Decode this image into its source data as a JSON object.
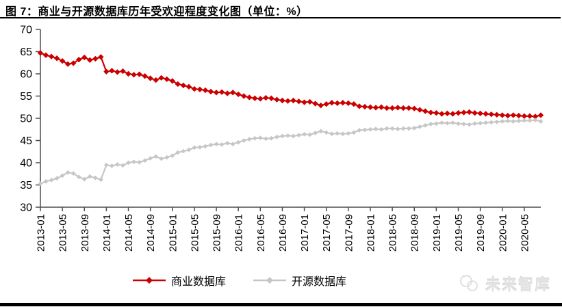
{
  "figure": {
    "title": "图 7：商业与开源数据库历年受欢迎程度变化图（单位：%）"
  },
  "watermark": {
    "text": "未来智库"
  },
  "colors": {
    "commercial": "#CC0000",
    "opensource": "#C6C6C6",
    "axis": "#4d4d4d",
    "text": "#000000"
  },
  "chart_data": {
    "type": "line",
    "title": "商业与开源数据库历年受欢迎程度变化图（单位：%）",
    "xlabel": "",
    "ylabel": "",
    "ylim": [
      30,
      70
    ],
    "y_ticks": [
      30,
      35,
      40,
      45,
      50,
      55,
      60,
      65,
      70
    ],
    "grid": false,
    "legend_position": "bottom",
    "x_tick_every": 4,
    "x": [
      "2013-01",
      "2013-02",
      "2013-03",
      "2013-04",
      "2013-05",
      "2013-06",
      "2013-07",
      "2013-08",
      "2013-09",
      "2013-10",
      "2013-11",
      "2013-12",
      "2014-01",
      "2014-02",
      "2014-03",
      "2014-04",
      "2014-05",
      "2014-06",
      "2014-07",
      "2014-08",
      "2014-09",
      "2014-10",
      "2014-11",
      "2014-12",
      "2015-01",
      "2015-02",
      "2015-03",
      "2015-04",
      "2015-05",
      "2015-06",
      "2015-07",
      "2015-08",
      "2015-09",
      "2015-10",
      "2015-11",
      "2015-12",
      "2016-01",
      "2016-02",
      "2016-03",
      "2016-04",
      "2016-05",
      "2016-06",
      "2016-07",
      "2016-08",
      "2016-09",
      "2016-10",
      "2016-11",
      "2016-12",
      "2017-01",
      "2017-02",
      "2017-03",
      "2017-04",
      "2017-05",
      "2017-06",
      "2017-07",
      "2017-08",
      "2017-09",
      "2017-10",
      "2017-11",
      "2017-12",
      "2018-01",
      "2018-02",
      "2018-03",
      "2018-04",
      "2018-05",
      "2018-06",
      "2018-07",
      "2018-08",
      "2018-09",
      "2018-10",
      "2018-11",
      "2018-12",
      "2019-01",
      "2019-02",
      "2019-03",
      "2019-04",
      "2019-05",
      "2019-06",
      "2019-07",
      "2019-08",
      "2019-09",
      "2019-10",
      "2019-11",
      "2019-12",
      "2020-01",
      "2020-02",
      "2020-03",
      "2020-04",
      "2020-05",
      "2020-06",
      "2020-07",
      "2020-08"
    ],
    "x_tick_labels": [
      "2013-01",
      "2013-05",
      "2013-09",
      "2014-01",
      "2014-05",
      "2014-09",
      "2015-01",
      "2015-05",
      "2015-09",
      "2016-01",
      "2016-05",
      "2016-09",
      "2017-01",
      "2017-05",
      "2017-09",
      "2018-01",
      "2018-05",
      "2018-09",
      "2019-01",
      "2019-05",
      "2019-09",
      "2020-01",
      "2020-05"
    ],
    "series": [
      {
        "name": "商业数据库",
        "color": "#CC0000",
        "marker": "diamond",
        "values": [
          64.7,
          64.2,
          63.9,
          63.5,
          62.9,
          62.2,
          62.4,
          63.2,
          63.7,
          63.1,
          63.4,
          63.8,
          60.5,
          60.7,
          60.4,
          60.6,
          60.0,
          59.8,
          59.9,
          59.5,
          59.0,
          58.6,
          59.1,
          58.8,
          58.4,
          57.7,
          57.4,
          57.1,
          56.6,
          56.5,
          56.3,
          56.0,
          55.8,
          55.9,
          55.6,
          55.8,
          55.4,
          55.0,
          54.7,
          54.5,
          54.4,
          54.6,
          54.5,
          54.2,
          54.0,
          53.9,
          54.0,
          53.8,
          53.6,
          53.7,
          53.3,
          52.9,
          53.2,
          53.5,
          53.4,
          53.5,
          53.4,
          53.2,
          52.7,
          52.6,
          52.5,
          52.4,
          52.5,
          52.3,
          52.3,
          52.4,
          52.3,
          52.3,
          52.2,
          51.9,
          51.6,
          51.3,
          51.2,
          51.0,
          51.1,
          51.0,
          51.2,
          51.3,
          51.4,
          51.2,
          51.1,
          51.0,
          50.9,
          50.8,
          50.7,
          50.6,
          50.7,
          50.6,
          50.5,
          50.5,
          50.4,
          50.7
        ]
      },
      {
        "name": "开源数据库",
        "color": "#C6C6C6",
        "marker": "diamond",
        "values": [
          35.3,
          35.8,
          36.1,
          36.5,
          37.1,
          37.8,
          37.6,
          36.8,
          36.3,
          36.9,
          36.6,
          36.2,
          39.5,
          39.3,
          39.6,
          39.4,
          40.0,
          40.2,
          40.1,
          40.5,
          41.0,
          41.4,
          40.9,
          41.2,
          41.6,
          42.3,
          42.6,
          42.9,
          43.4,
          43.5,
          43.7,
          44.0,
          44.2,
          44.1,
          44.4,
          44.2,
          44.6,
          45.0,
          45.3,
          45.5,
          45.6,
          45.4,
          45.5,
          45.8,
          46.0,
          46.1,
          46.0,
          46.2,
          46.4,
          46.3,
          46.7,
          47.1,
          46.8,
          46.5,
          46.6,
          46.5,
          46.6,
          46.8,
          47.3,
          47.4,
          47.5,
          47.6,
          47.5,
          47.7,
          47.7,
          47.6,
          47.7,
          47.7,
          47.8,
          48.1,
          48.4,
          48.7,
          48.8,
          49.0,
          48.9,
          49.0,
          48.8,
          48.7,
          48.6,
          48.8,
          48.9,
          49.0,
          49.1,
          49.2,
          49.3,
          49.4,
          49.3,
          49.4,
          49.5,
          49.5,
          49.6,
          49.3
        ]
      }
    ]
  },
  "legend": {
    "items": [
      {
        "label": "商业数据库",
        "color": "#CC0000"
      },
      {
        "label": "开源数据库",
        "color": "#C6C6C6"
      }
    ]
  }
}
